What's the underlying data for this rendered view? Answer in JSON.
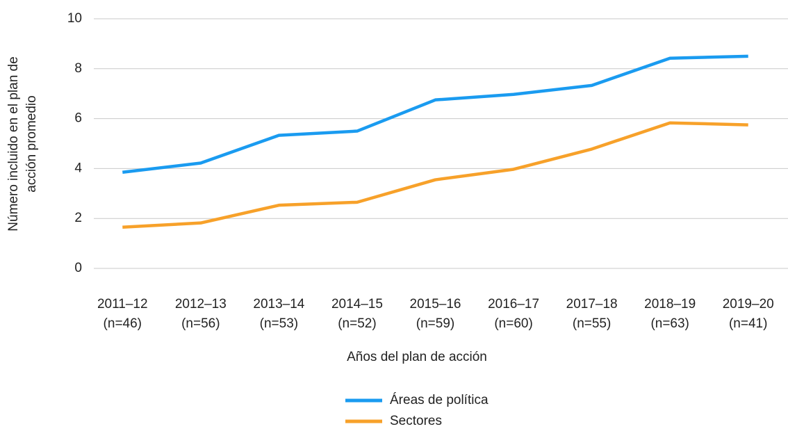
{
  "chart_data": {
    "type": "line",
    "ylabel": [
      "Número incluido en el plan de",
      "acción promedio"
    ],
    "xlabel": "Años del plan de acción",
    "categories": [
      "2011–12",
      "2012–13",
      "2013–14",
      "2014–15",
      "2015–16",
      "2016–17",
      "2017–18",
      "2018–19",
      "2019–20"
    ],
    "category_notes": [
      "(n=46)",
      "(n=56)",
      "(n=53)",
      "(n=52)",
      "(n=59)",
      "(n=60)",
      "(n=55)",
      "(n=63)",
      "(n=41)"
    ],
    "series": [
      {
        "name": "Áreas de política",
        "color": "#1a9bf0",
        "values": [
          3.85,
          4.22,
          5.33,
          5.5,
          6.75,
          6.97,
          7.33,
          8.42,
          8.5
        ]
      },
      {
        "name": "Sectores",
        "color": "#f7a12a",
        "values": [
          1.65,
          1.82,
          2.53,
          2.65,
          3.55,
          3.97,
          4.78,
          5.83,
          5.75
        ]
      }
    ],
    "ylim": [
      0,
      10
    ],
    "yticks": [
      0,
      2,
      4,
      6,
      8,
      10
    ],
    "grid": true,
    "legend": "bottom"
  }
}
